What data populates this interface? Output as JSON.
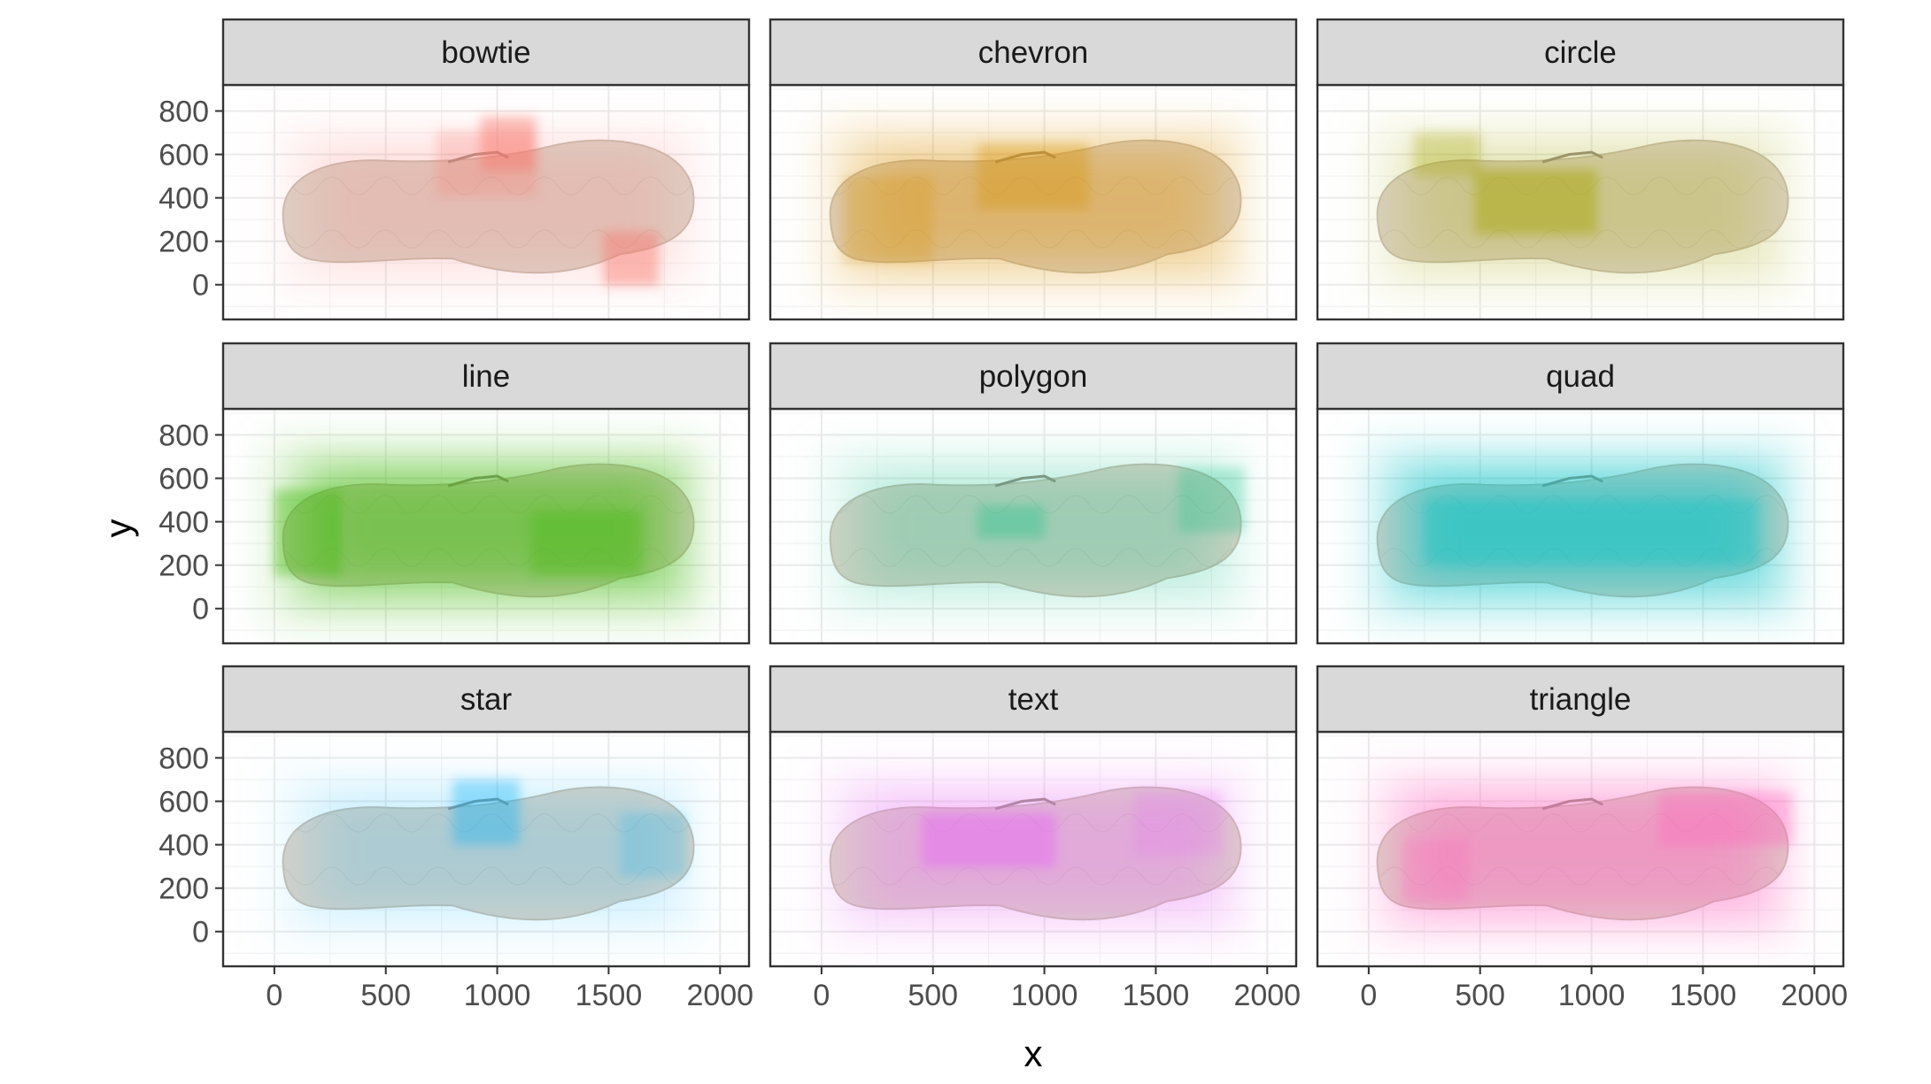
{
  "chart_data": {
    "type": "heatmap",
    "facet_layout": "3x3 grid",
    "xlabel": "x",
    "ylabel": "y",
    "xlim": [
      -230,
      2130
    ],
    "ylim": [
      -160,
      920
    ],
    "x_ticks": [
      0,
      500,
      1000,
      1500,
      2000
    ],
    "y_ticks": [
      0,
      200,
      400,
      600,
      800
    ],
    "grid": true,
    "background_image": "shoe-sole-photo",
    "panels": [
      {
        "name": "bowtie",
        "color": "#F8766D",
        "intensity": 0.35,
        "hotspots": [
          {
            "x": 1050,
            "y": 650,
            "w": 250,
            "h": 250,
            "a": 0.45
          },
          {
            "x": 1600,
            "y": 120,
            "w": 250,
            "h": 250,
            "a": 0.45
          },
          {
            "x": 950,
            "y": 560,
            "w": 450,
            "h": 300,
            "a": 0.25
          }
        ]
      },
      {
        "name": "chevron",
        "color": "#D89000",
        "intensity": 0.7,
        "hotspots": [
          {
            "x": 950,
            "y": 500,
            "w": 500,
            "h": 300,
            "a": 0.35
          },
          {
            "x": 300,
            "y": 300,
            "w": 400,
            "h": 400,
            "a": 0.25
          }
        ]
      },
      {
        "name": "circle",
        "color": "#A3A500",
        "intensity": 0.45,
        "hotspots": [
          {
            "x": 750,
            "y": 380,
            "w": 550,
            "h": 300,
            "a": 0.45
          },
          {
            "x": 350,
            "y": 600,
            "w": 300,
            "h": 200,
            "a": 0.3
          }
        ]
      },
      {
        "name": "line",
        "color": "#39B600",
        "intensity": 1.0,
        "hotspots": [
          {
            "x": 150,
            "y": 350,
            "w": 300,
            "h": 400,
            "a": 0.4
          },
          {
            "x": 1400,
            "y": 300,
            "w": 500,
            "h": 300,
            "a": 0.3
          }
        ]
      },
      {
        "name": "polygon",
        "color": "#00BF7D",
        "intensity": 0.4,
        "hotspots": [
          {
            "x": 850,
            "y": 400,
            "w": 300,
            "h": 150,
            "a": 0.3
          },
          {
            "x": 1750,
            "y": 500,
            "w": 300,
            "h": 300,
            "a": 0.25
          }
        ]
      },
      {
        "name": "quad",
        "color": "#00BFC4",
        "intensity": 1.0,
        "hotspots": [
          {
            "x": 1000,
            "y": 350,
            "w": 1500,
            "h": 300,
            "a": 0.3
          }
        ]
      },
      {
        "name": "star",
        "color": "#00B0F6",
        "intensity": 0.3,
        "hotspots": [
          {
            "x": 950,
            "y": 550,
            "w": 300,
            "h": 300,
            "a": 0.35
          },
          {
            "x": 1700,
            "y": 400,
            "w": 300,
            "h": 300,
            "a": 0.2
          }
        ]
      },
      {
        "name": "text",
        "color": "#E76BF3",
        "intensity": 0.6,
        "hotspots": [
          {
            "x": 750,
            "y": 420,
            "w": 600,
            "h": 250,
            "a": 0.5
          },
          {
            "x": 1600,
            "y": 500,
            "w": 400,
            "h": 300,
            "a": 0.2
          }
        ]
      },
      {
        "name": "triangle",
        "color": "#FF62BC",
        "intensity": 0.8,
        "hotspots": [
          {
            "x": 1600,
            "y": 520,
            "w": 600,
            "h": 250,
            "a": 0.35
          },
          {
            "x": 300,
            "y": 280,
            "w": 300,
            "h": 300,
            "a": 0.25
          }
        ]
      }
    ]
  }
}
